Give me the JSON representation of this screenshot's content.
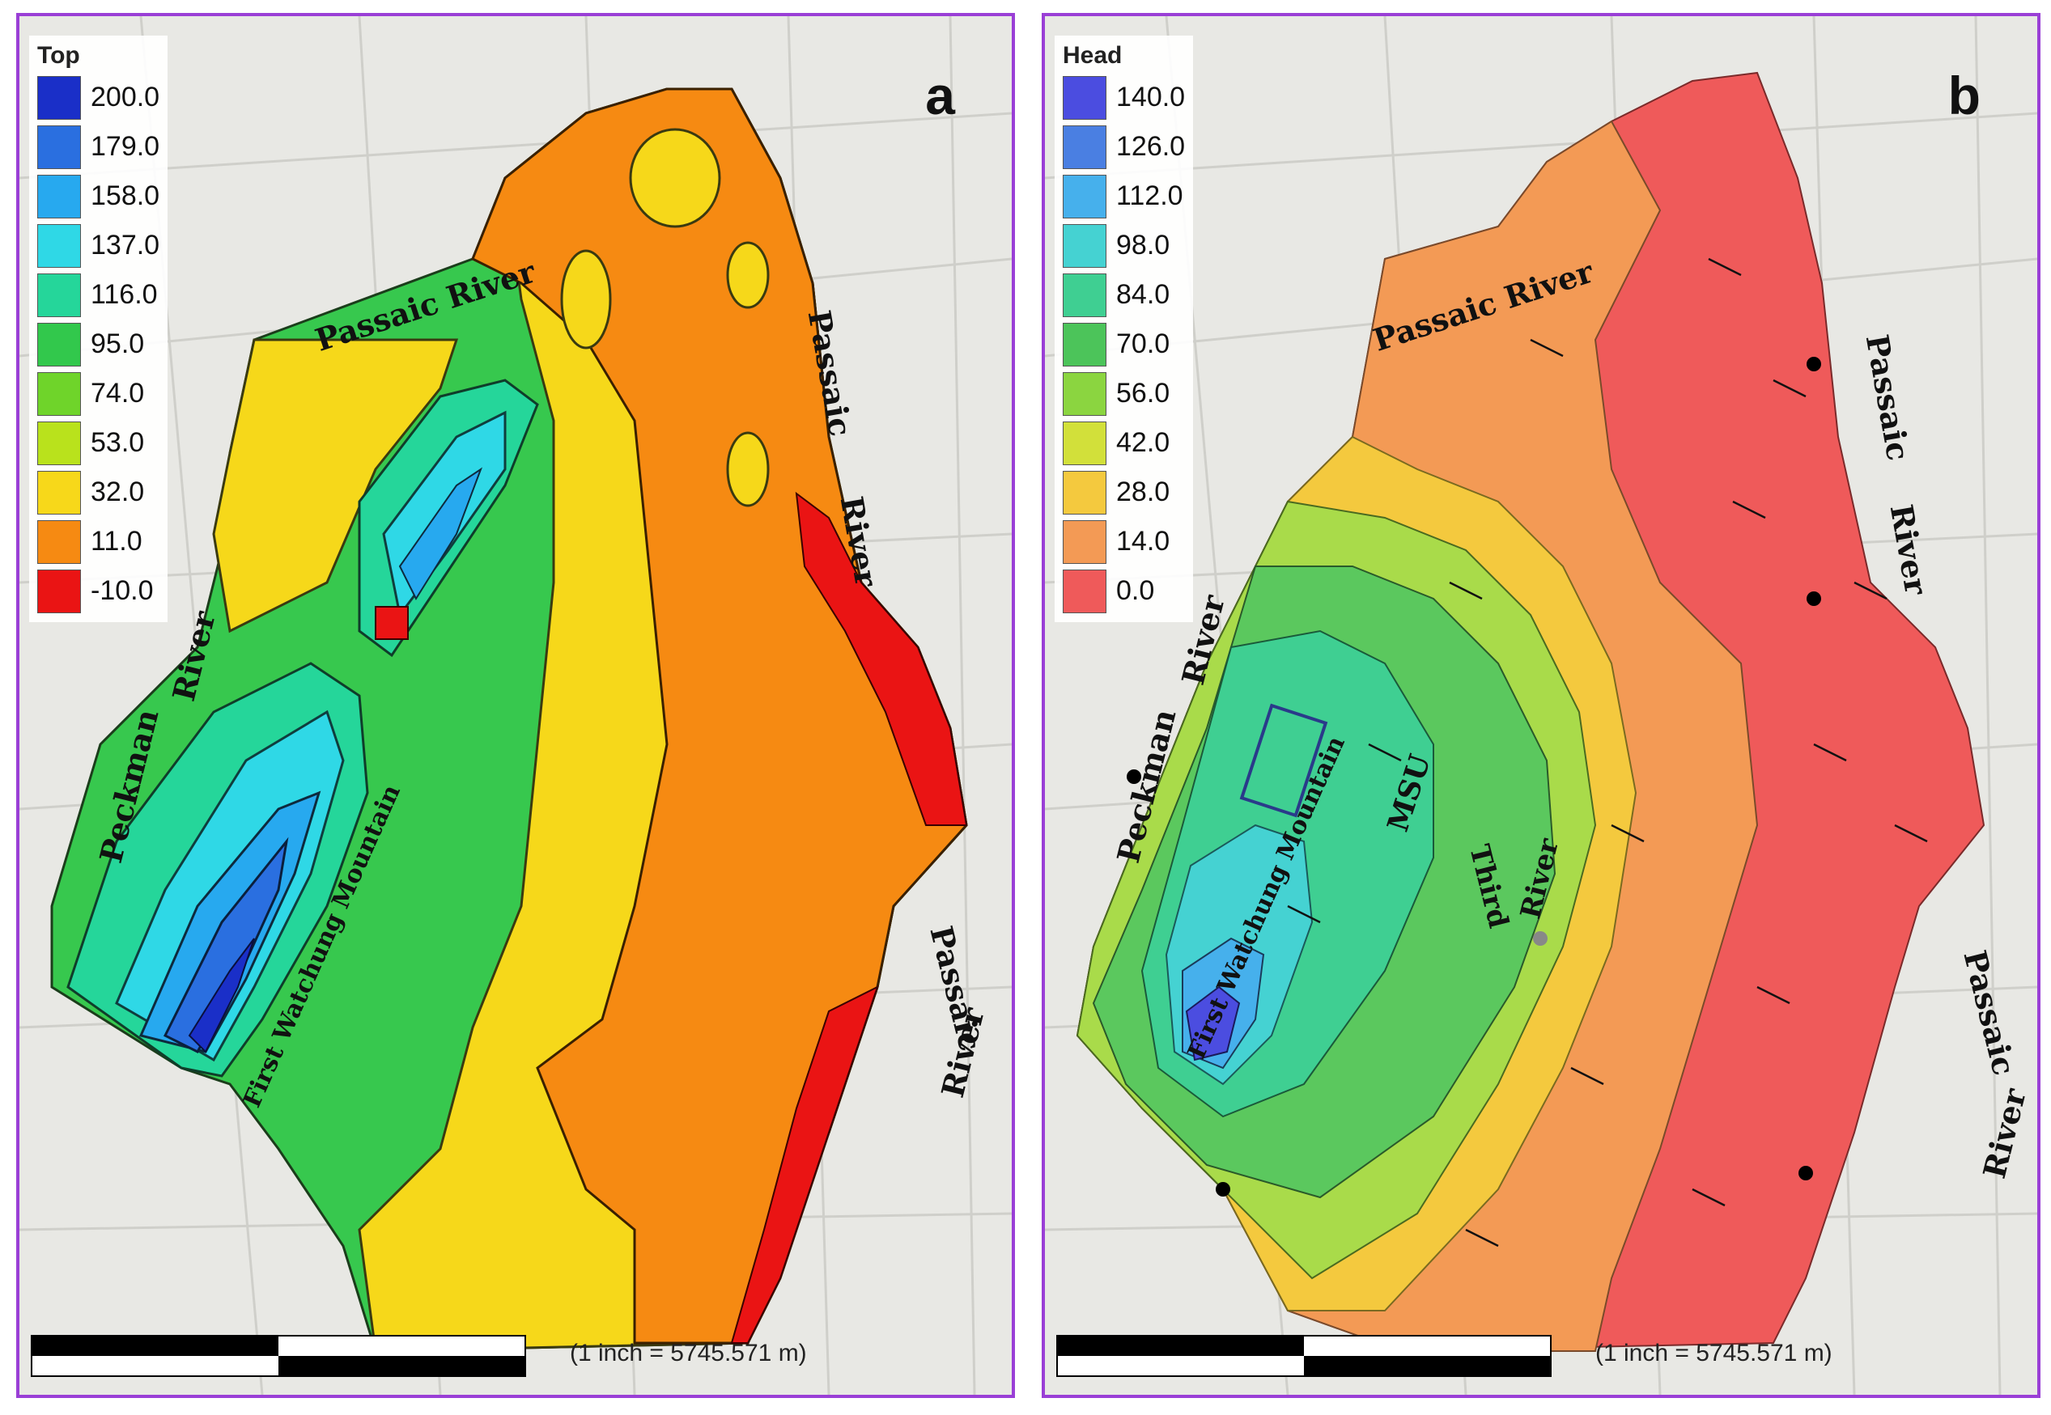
{
  "panels": [
    {
      "letter": "a",
      "legend_title": "Top",
      "legend": [
        {
          "label": "200.0",
          "color": "#1a2fc8"
        },
        {
          "label": "179.0",
          "color": "#2a6fe0"
        },
        {
          "label": "158.0",
          "color": "#27a9ef"
        },
        {
          "label": "137.0",
          "color": "#2fd8e6"
        },
        {
          "label": "116.0",
          "color": "#25d69a"
        },
        {
          "label": "95.0",
          "color": "#32c84c"
        },
        {
          "label": "74.0",
          "color": "#6fd42a"
        },
        {
          "label": "53.0",
          "color": "#b9e21c"
        },
        {
          "label": "32.0",
          "color": "#f7d81a"
        },
        {
          "label": "11.0",
          "color": "#f68a12"
        },
        {
          "label": "-10.0",
          "color": "#ea1414"
        }
      ],
      "labels": {
        "passaic_top": "Passaic  River",
        "passaic_right1": "Passaic",
        "river_right1": "River",
        "passaic_right2": "Passaic",
        "river_right2": "River",
        "peckman": "Peckman",
        "peckman_river": "River",
        "mountain": "First Watchung Mountain"
      },
      "scale_text": "(1 inch = 5745.571 m)"
    },
    {
      "letter": "b",
      "legend_title": "Head",
      "legend": [
        {
          "label": "140.0",
          "color": "#4b4de0"
        },
        {
          "label": "126.0",
          "color": "#4a7fe2"
        },
        {
          "label": "112.0",
          "color": "#46b0ec"
        },
        {
          "label": "98.0",
          "color": "#45d2d2"
        },
        {
          "label": "84.0",
          "color": "#3fcf92"
        },
        {
          "label": "70.0",
          "color": "#4cc45a"
        },
        {
          "label": "56.0",
          "color": "#8bd540"
        },
        {
          "label": "42.0",
          "color": "#d2e03a"
        },
        {
          "label": "28.0",
          "color": "#f4c93e"
        },
        {
          "label": "14.0",
          "color": "#f39a55"
        },
        {
          "label": "0.0",
          "color": "#ef5a5a"
        }
      ],
      "labels": {
        "passaic_top": "Passaic  River",
        "passaic_right1": "Passaic",
        "river_right1": "River",
        "passaic_right2": "Passaic",
        "river_right2": "River",
        "peckman": "Peckman",
        "peckman_river": "River",
        "mountain": "First Watchung Mountain",
        "msu": "MSU",
        "third": "Third",
        "third_river": "River"
      },
      "scale_text": "(1 inch = 5745.571 m)"
    }
  ]
}
